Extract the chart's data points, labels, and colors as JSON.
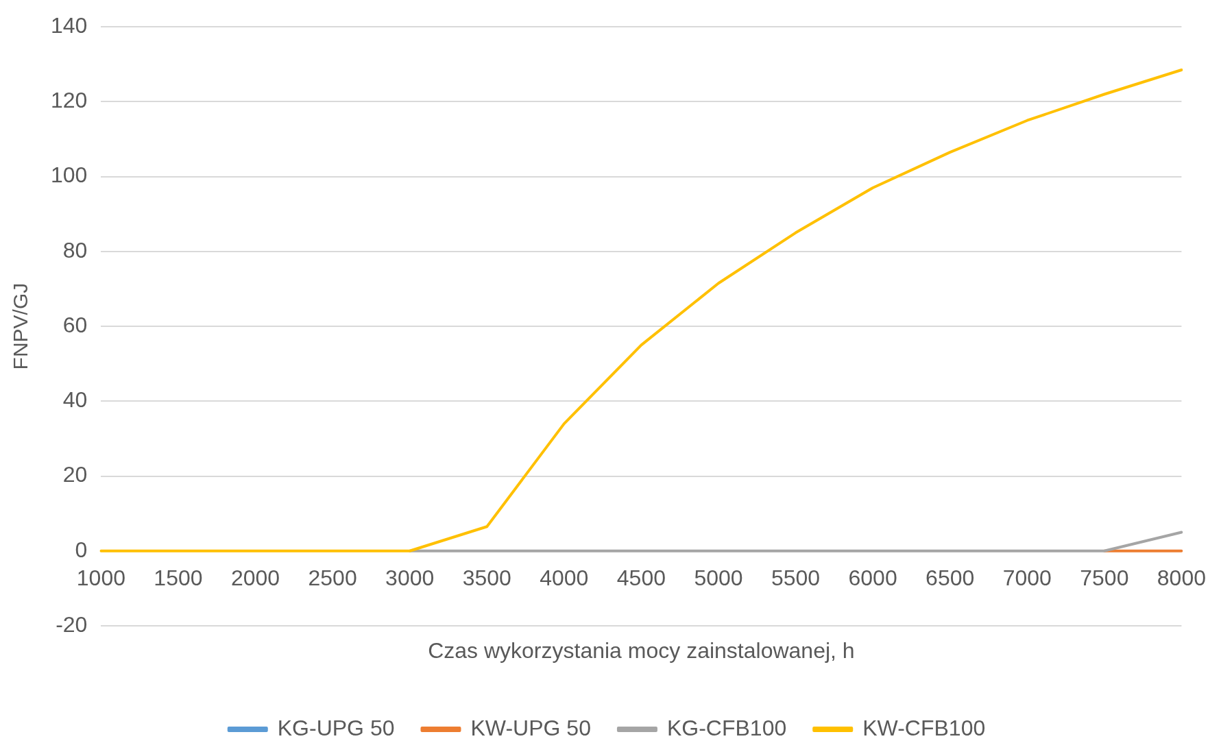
{
  "chart_data": {
    "type": "line",
    "xlabel": "Czas wykorzystania mocy zainstalowanej, h",
    "ylabel": "FNPV/GJ",
    "categories": [
      "1000",
      "1500",
      "2000",
      "2500",
      "3000",
      "3500",
      "4000",
      "4500",
      "5000",
      "5500",
      "6000",
      "6500",
      "7000",
      "7500",
      "8000"
    ],
    "series": [
      {
        "name": "KG-UPG 50",
        "color": "#5b9bd5",
        "values": [
          null,
          null,
          null,
          null,
          null,
          null,
          null,
          null,
          null,
          null,
          null,
          null,
          null,
          null,
          null
        ]
      },
      {
        "name": "KW-UPG 50",
        "color": "#ed7d31",
        "values": [
          null,
          null,
          null,
          null,
          null,
          null,
          null,
          null,
          null,
          null,
          null,
          null,
          null,
          0,
          0
        ]
      },
      {
        "name": "KG-CFB100",
        "color": "#a5a5a5",
        "values": [
          null,
          null,
          null,
          null,
          0,
          0,
          0,
          0,
          0,
          0,
          0,
          0,
          0,
          0,
          5
        ]
      },
      {
        "name": "KW-CFB100",
        "color": "#ffc000",
        "values": [
          0,
          0,
          0,
          0,
          0,
          6.5,
          34,
          55,
          71.5,
          85,
          97,
          106.5,
          115,
          122,
          128.5
        ]
      }
    ],
    "ylim": [
      -20,
      140
    ],
    "yticks": [
      -20,
      0,
      20,
      40,
      60,
      80,
      100,
      120,
      140
    ],
    "grid": "y",
    "legend": "bottom",
    "marker": "none",
    "line_style": "solid"
  }
}
